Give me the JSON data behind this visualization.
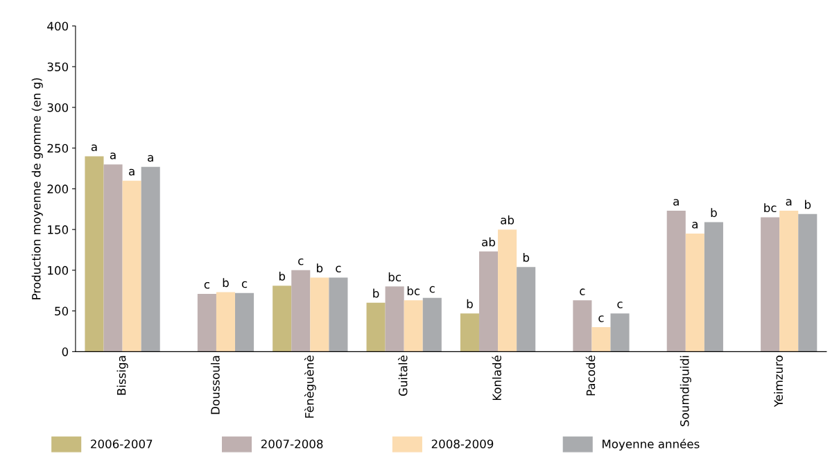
{
  "chart_data": {
    "type": "bar",
    "ylabel": "Production moyenne de gomme (en g)",
    "categories": [
      "Bissiga",
      "Doussoula",
      "Fènèguènè",
      "Guitalè",
      "Konladé",
      "Pacodé",
      "Soumdiguidi",
      "Yeimzuro"
    ],
    "series": [
      {
        "name": "2006-2007",
        "color": "#c8bb7e",
        "values": [
          240,
          null,
          81,
          60,
          47,
          null,
          null,
          null
        ],
        "value_labels": [
          "a",
          null,
          "b",
          "b",
          "b",
          null,
          null,
          null
        ]
      },
      {
        "name": "2007-2008",
        "color": "#bfb0b0",
        "values": [
          230,
          71,
          100,
          80,
          123,
          63,
          173,
          165
        ],
        "value_labels": [
          "a",
          "c",
          "c",
          "bc",
          "ab",
          "c",
          "a",
          "bc"
        ]
      },
      {
        "name": "2008-2009",
        "color": "#fcdcb0",
        "values": [
          210,
          73,
          91,
          63,
          150,
          30,
          145,
          173
        ],
        "value_labels": [
          "a",
          "b",
          "b",
          "bc",
          "ab",
          "c",
          "a",
          "a"
        ]
      },
      {
        "name": "Moyenne années",
        "color": "#a9abae",
        "values": [
          227,
          72,
          91,
          66,
          104,
          47,
          159,
          169
        ],
        "value_labels": [
          "a",
          "c",
          "c",
          "c",
          "b",
          "c",
          "b",
          "b"
        ]
      }
    ],
    "ylim": [
      0,
      400
    ],
    "yticks": [
      0,
      50,
      100,
      150,
      200,
      250,
      300,
      350,
      400
    ],
    "grid": false,
    "legend": "bottom"
  }
}
